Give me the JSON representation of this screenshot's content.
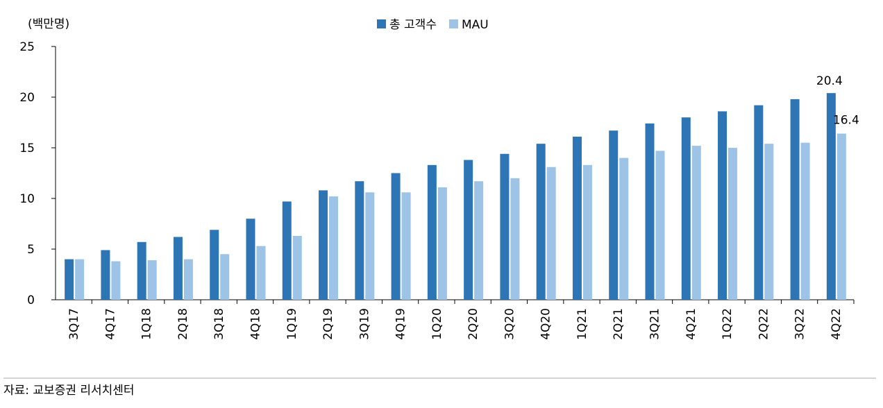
{
  "chart_data": {
    "type": "bar",
    "y_axis_label": "(백만명)",
    "source": "자료: 교보증권 리서치센터",
    "categories": [
      "3Q17",
      "4Q17",
      "1Q18",
      "2Q18",
      "3Q18",
      "4Q18",
      "1Q19",
      "2Q19",
      "3Q19",
      "4Q19",
      "1Q20",
      "2Q20",
      "3Q20",
      "4Q20",
      "1Q21",
      "2Q21",
      "3Q21",
      "4Q21",
      "1Q22",
      "2Q22",
      "3Q22",
      "4Q22"
    ],
    "series": [
      {
        "name": "총 고객수",
        "color": "#2e75b6",
        "values": [
          4.0,
          4.9,
          5.7,
          6.2,
          6.9,
          8.0,
          9.7,
          10.8,
          11.7,
          12.5,
          13.3,
          13.8,
          14.4,
          15.4,
          16.1,
          16.7,
          17.4,
          18.0,
          18.6,
          19.2,
          19.8,
          20.4
        ]
      },
      {
        "name": "MAU",
        "color": "#9dc3e6",
        "values": [
          4.0,
          3.8,
          3.9,
          4.0,
          4.5,
          5.3,
          6.3,
          10.2,
          10.6,
          10.6,
          11.1,
          11.7,
          12.0,
          13.1,
          13.3,
          14.0,
          14.7,
          15.2,
          15.0,
          15.4,
          15.5,
          16.4
        ]
      }
    ],
    "ylim": [
      0,
      25
    ],
    "yticks": [
      0,
      5,
      10,
      15,
      20,
      25
    ],
    "legend": "top"
  }
}
